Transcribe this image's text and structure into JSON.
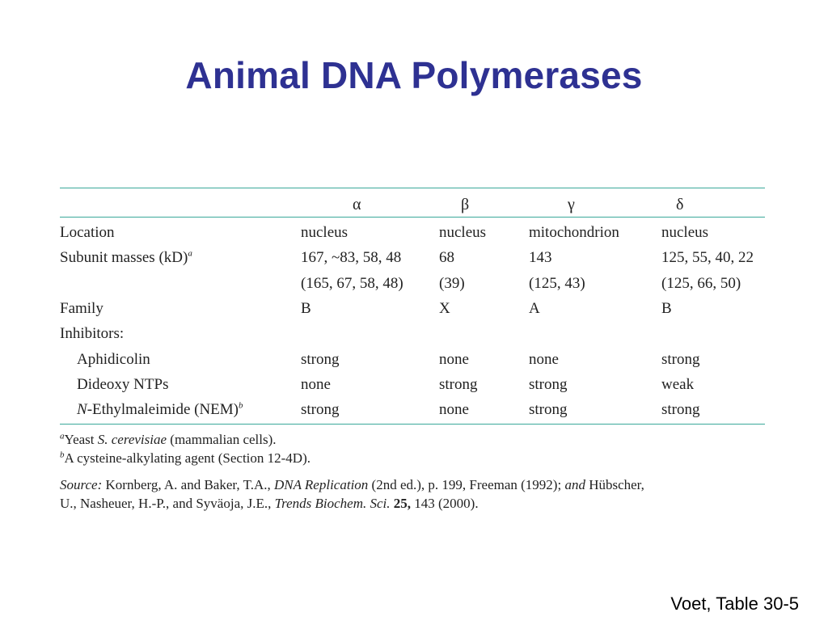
{
  "slide": {
    "title": "Animal DNA Polymerases",
    "citation": "Voet, Table 30-5"
  },
  "colors": {
    "title": "#2e3192",
    "rule": "#3aa89a"
  },
  "table": {
    "headers": [
      "α",
      "β",
      "γ",
      "δ"
    ],
    "rows": [
      {
        "label": "Location",
        "values": [
          "nucleus",
          "nucleus",
          "mitochondrion",
          "nucleus"
        ]
      },
      {
        "label": "Subunit masses (kD)",
        "label_sup": "a",
        "values": [
          "167, ~83, 58, 48",
          "68",
          "143",
          "125, 55, 40, 22"
        ]
      },
      {
        "label": "",
        "values": [
          "(165, 67, 58, 48)",
          "(39)",
          "(125, 43)",
          "(125, 66, 50)"
        ]
      },
      {
        "label": "Family",
        "values": [
          "B",
          "X",
          "A",
          "B"
        ]
      },
      {
        "label": "Inhibitors:",
        "values": [
          "",
          "",
          "",
          ""
        ]
      },
      {
        "label": "Aphidicolin",
        "values": [
          "strong",
          "none",
          "none",
          "strong"
        ]
      },
      {
        "label": "Dideoxy NTPs",
        "values": [
          "none",
          "strong",
          "strong",
          "weak"
        ]
      },
      {
        "label_italic": "N",
        "label": "-Ethylmaleimide (NEM)",
        "label_sup": "b",
        "values": [
          "strong",
          "none",
          "strong",
          "strong"
        ]
      }
    ]
  },
  "footnotes": {
    "a_mark": "a",
    "a_text_1": "Yeast ",
    "a_text_italic": "S. cerevisiae",
    "a_text_2": " (mammalian cells).",
    "b_mark": "b",
    "b_text": "A cysteine-alkylating agent (Section 12-4D).",
    "source_label": "Source:",
    "source_1": " Kornberg, A. and Baker, T.A., ",
    "source_book": "DNA Replication",
    "source_2": " (2nd ed.), p. 199, Freeman (1992); ",
    "source_and": "and",
    "source_3": " Hübscher,",
    "source_line2_1": "U., Nasheuer, H.-P., and Syväoja, J.E., ",
    "source_journal": "Trends Biochem. Sci.",
    "source_vol": "25,",
    "source_line2_2": " 143 (2000)."
  }
}
